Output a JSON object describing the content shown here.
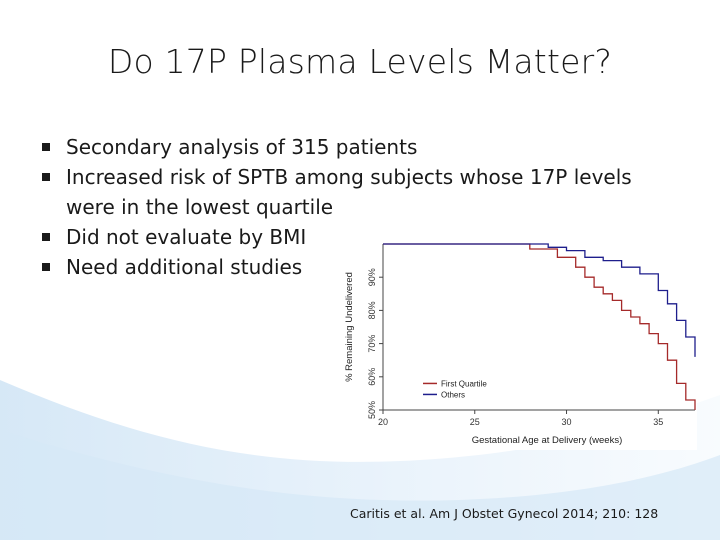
{
  "slide": {
    "title": "Do 17P Plasma Levels Matter?",
    "bullets": [
      "Secondary analysis of 315 patients",
      "Increased risk of SPTB among subjects whose 17P levels were in the lowest quartile",
      "Did not evaluate by BMI",
      "Need additional studies"
    ],
    "citation": "Caritis et al. Am J Obstet Gynecol 2014; 210: 128"
  },
  "colors": {
    "first_quartile": "#a52a2a",
    "others": "#1e1e8c",
    "axis": "#444444",
    "wave": "#b9d7ef"
  },
  "chart_data": {
    "type": "line",
    "title": "",
    "xlabel": "Gestational Age at Delivery (weeks)",
    "ylabel": "% Remaining Undelivered",
    "xlim": [
      20,
      37
    ],
    "ylim": [
      50,
      100
    ],
    "xticks": [
      20,
      25,
      30,
      35
    ],
    "yticks": [
      50,
      60,
      70,
      80,
      90
    ],
    "ytick_labels": [
      "50%",
      "60%",
      "70%",
      "80%",
      "90%"
    ],
    "legend": {
      "position": "bottom-left"
    },
    "series": [
      {
        "name": "First Quartile",
        "color": "#a52a2a",
        "x": [
          20,
          27,
          28,
          29.5,
          30.5,
          31,
          31.5,
          32,
          32.5,
          33,
          33.5,
          34,
          34.5,
          35,
          35.5,
          36,
          36.5,
          37
        ],
        "y": [
          100,
          100,
          98.5,
          96,
          93,
          90,
          87,
          85,
          83,
          80,
          78,
          76,
          73,
          70,
          65,
          58,
          53,
          50
        ]
      },
      {
        "name": "Others",
        "color": "#1e1e8c",
        "x": [
          20,
          28,
          29,
          30,
          31,
          32,
          33,
          34,
          35,
          35.5,
          36,
          36.5,
          37
        ],
        "y": [
          100,
          100,
          99,
          98,
          96,
          95,
          93,
          91,
          86,
          82,
          77,
          72,
          66
        ]
      }
    ]
  }
}
